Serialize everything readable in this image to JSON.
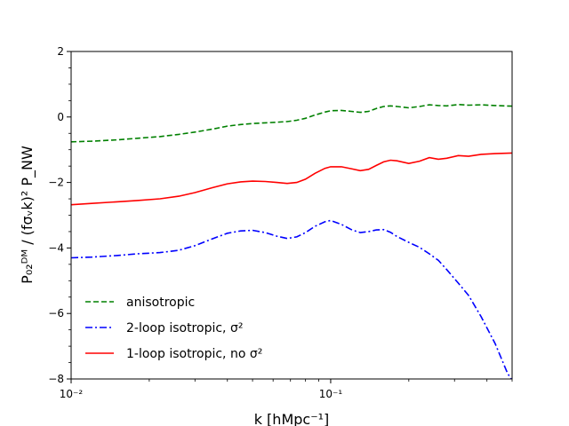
{
  "chart_data": {
    "type": "line",
    "xscale": "log",
    "xlim": [
      0.01,
      0.5
    ],
    "ylim": [
      -8,
      2
    ],
    "xlabel": "k [hMpc⁻¹]",
    "ylabel": "P₀₂ᴰᴹ / (fσᵥk)² P_NW",
    "x_ticks": [
      0.01,
      0.1
    ],
    "x_tick_labels": [
      "10⁻²",
      "10⁻¹"
    ],
    "y_ticks": [
      -8,
      -6,
      -4,
      -2,
      0,
      2
    ],
    "y_tick_labels": [
      "−8",
      "−6",
      "−4",
      "−2",
      "0",
      "2"
    ],
    "legend_position": "lower-left",
    "grid": false,
    "series": [
      {
        "name": "anisotropic",
        "color": "#008000",
        "style": "dashed",
        "points": [
          [
            0.01,
            -0.76
          ],
          [
            0.012,
            -0.74
          ],
          [
            0.015,
            -0.7
          ],
          [
            0.018,
            -0.65
          ],
          [
            0.022,
            -0.6
          ],
          [
            0.026,
            -0.53
          ],
          [
            0.03,
            -0.46
          ],
          [
            0.035,
            -0.37
          ],
          [
            0.04,
            -0.28
          ],
          [
            0.045,
            -0.23
          ],
          [
            0.05,
            -0.2
          ],
          [
            0.056,
            -0.18
          ],
          [
            0.062,
            -0.16
          ],
          [
            0.068,
            -0.14
          ],
          [
            0.074,
            -0.1
          ],
          [
            0.08,
            -0.04
          ],
          [
            0.087,
            0.06
          ],
          [
            0.095,
            0.15
          ],
          [
            0.1,
            0.19
          ],
          [
            0.11,
            0.2
          ],
          [
            0.12,
            0.17
          ],
          [
            0.13,
            0.14
          ],
          [
            0.14,
            0.17
          ],
          [
            0.15,
            0.26
          ],
          [
            0.16,
            0.32
          ],
          [
            0.17,
            0.34
          ],
          [
            0.18,
            0.32
          ],
          [
            0.2,
            0.28
          ],
          [
            0.22,
            0.32
          ],
          [
            0.24,
            0.37
          ],
          [
            0.26,
            0.35
          ],
          [
            0.28,
            0.34
          ],
          [
            0.31,
            0.38
          ],
          [
            0.34,
            0.36
          ],
          [
            0.38,
            0.37
          ],
          [
            0.43,
            0.35
          ],
          [
            0.5,
            0.33
          ]
        ]
      },
      {
        "name": "2-loop isotropic, σ²",
        "color": "#0000ff",
        "style": "dashdot",
        "points": [
          [
            0.01,
            -4.3
          ],
          [
            0.012,
            -4.28
          ],
          [
            0.015,
            -4.23
          ],
          [
            0.018,
            -4.18
          ],
          [
            0.022,
            -4.14
          ],
          [
            0.026,
            -4.07
          ],
          [
            0.03,
            -3.93
          ],
          [
            0.035,
            -3.72
          ],
          [
            0.04,
            -3.55
          ],
          [
            0.045,
            -3.48
          ],
          [
            0.05,
            -3.46
          ],
          [
            0.056,
            -3.53
          ],
          [
            0.062,
            -3.64
          ],
          [
            0.068,
            -3.71
          ],
          [
            0.074,
            -3.66
          ],
          [
            0.08,
            -3.53
          ],
          [
            0.087,
            -3.34
          ],
          [
            0.095,
            -3.2
          ],
          [
            0.1,
            -3.16
          ],
          [
            0.11,
            -3.28
          ],
          [
            0.12,
            -3.44
          ],
          [
            0.13,
            -3.53
          ],
          [
            0.14,
            -3.5
          ],
          [
            0.15,
            -3.45
          ],
          [
            0.16,
            -3.44
          ],
          [
            0.17,
            -3.52
          ],
          [
            0.18,
            -3.65
          ],
          [
            0.2,
            -3.83
          ],
          [
            0.22,
            -3.98
          ],
          [
            0.24,
            -4.18
          ],
          [
            0.26,
            -4.38
          ],
          [
            0.28,
            -4.66
          ],
          [
            0.31,
            -5.07
          ],
          [
            0.34,
            -5.45
          ],
          [
            0.38,
            -6.1
          ],
          [
            0.43,
            -6.92
          ],
          [
            0.48,
            -7.82
          ],
          [
            0.5,
            -8.05
          ]
        ]
      },
      {
        "name": "1-loop isotropic, no σ²",
        "color": "#ff0000",
        "style": "solid",
        "points": [
          [
            0.01,
            -2.68
          ],
          [
            0.012,
            -2.64
          ],
          [
            0.015,
            -2.59
          ],
          [
            0.018,
            -2.55
          ],
          [
            0.022,
            -2.5
          ],
          [
            0.026,
            -2.42
          ],
          [
            0.03,
            -2.31
          ],
          [
            0.035,
            -2.16
          ],
          [
            0.04,
            -2.04
          ],
          [
            0.045,
            -1.98
          ],
          [
            0.05,
            -1.96
          ],
          [
            0.056,
            -1.97
          ],
          [
            0.062,
            -2.0
          ],
          [
            0.068,
            -2.03
          ],
          [
            0.074,
            -2.0
          ],
          [
            0.08,
            -1.9
          ],
          [
            0.087,
            -1.72
          ],
          [
            0.095,
            -1.57
          ],
          [
            0.1,
            -1.52
          ],
          [
            0.11,
            -1.52
          ],
          [
            0.12,
            -1.58
          ],
          [
            0.13,
            -1.64
          ],
          [
            0.14,
            -1.6
          ],
          [
            0.15,
            -1.48
          ],
          [
            0.16,
            -1.37
          ],
          [
            0.17,
            -1.32
          ],
          [
            0.18,
            -1.34
          ],
          [
            0.2,
            -1.42
          ],
          [
            0.22,
            -1.35
          ],
          [
            0.24,
            -1.24
          ],
          [
            0.26,
            -1.29
          ],
          [
            0.28,
            -1.26
          ],
          [
            0.31,
            -1.18
          ],
          [
            0.34,
            -1.2
          ],
          [
            0.38,
            -1.14
          ],
          [
            0.43,
            -1.12
          ],
          [
            0.5,
            -1.1
          ]
        ]
      }
    ]
  }
}
